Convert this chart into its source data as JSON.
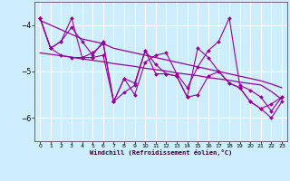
{
  "xlabel": "Windchill (Refroidissement éolien,°C)",
  "background_color": "#cceeff",
  "line_color": "#990099",
  "grid_color": "#aadddd",
  "xlim": [
    -0.5,
    23.5
  ],
  "ylim": [
    -6.5,
    -3.5
  ],
  "yticks": [
    -6,
    -5,
    -4
  ],
  "xticks": [
    0,
    1,
    2,
    3,
    4,
    5,
    6,
    7,
    8,
    9,
    10,
    11,
    12,
    13,
    14,
    15,
    16,
    17,
    18,
    19,
    20,
    21,
    22,
    23
  ],
  "xtick_labels": [
    "0",
    "1",
    "2",
    "3",
    "4",
    "5",
    "6",
    "7",
    "8",
    "9",
    "10",
    "11",
    "12",
    "13",
    "14",
    "15",
    "16",
    "17",
    "18",
    "19",
    "20",
    "21",
    "22",
    "23"
  ],
  "series1": [
    -3.85,
    -4.5,
    -4.35,
    -3.85,
    -4.7,
    -4.6,
    -4.4,
    -5.65,
    -5.15,
    -5.5,
    -4.8,
    -4.65,
    -4.6,
    -5.05,
    -5.35,
    -4.9,
    -4.55,
    -4.35,
    -3.85,
    -5.3,
    -5.4,
    -5.55,
    -5.85,
    -5.55
  ],
  "series2": [
    -3.85,
    -4.5,
    -4.35,
    -4.05,
    -4.35,
    -4.65,
    -4.35,
    -5.65,
    -5.45,
    -5.3,
    -4.55,
    -5.05,
    -5.05,
    -5.1,
    -5.55,
    -4.5,
    -4.7,
    -5.0,
    -5.25,
    -5.35,
    -5.65,
    -5.8,
    -6.0,
    -5.65
  ],
  "series3": [
    -3.85,
    -4.5,
    -4.65,
    -4.7,
    -4.7,
    -4.7,
    -4.65,
    -5.65,
    -5.15,
    -5.25,
    -4.55,
    -4.85,
    -5.05,
    -5.1,
    -5.55,
    -5.5,
    -5.1,
    -5.0,
    -5.25,
    -5.35,
    -5.65,
    -5.8,
    -5.7,
    -5.55
  ],
  "trend1": [
    -3.9,
    -4.0,
    -4.1,
    -4.2,
    -4.3,
    -4.35,
    -4.4,
    -4.5,
    -4.55,
    -4.6,
    -4.65,
    -4.7,
    -4.75,
    -4.8,
    -4.85,
    -4.9,
    -4.95,
    -5.0,
    -5.05,
    -5.1,
    -5.15,
    -5.2,
    -5.27,
    -5.35
  ],
  "trend2": [
    -4.6,
    -4.63,
    -4.66,
    -4.69,
    -4.73,
    -4.76,
    -4.79,
    -4.83,
    -4.86,
    -4.89,
    -4.93,
    -4.96,
    -4.99,
    -5.03,
    -5.06,
    -5.09,
    -5.13,
    -5.16,
    -5.19,
    -5.23,
    -5.26,
    -5.29,
    -5.43,
    -5.6
  ]
}
